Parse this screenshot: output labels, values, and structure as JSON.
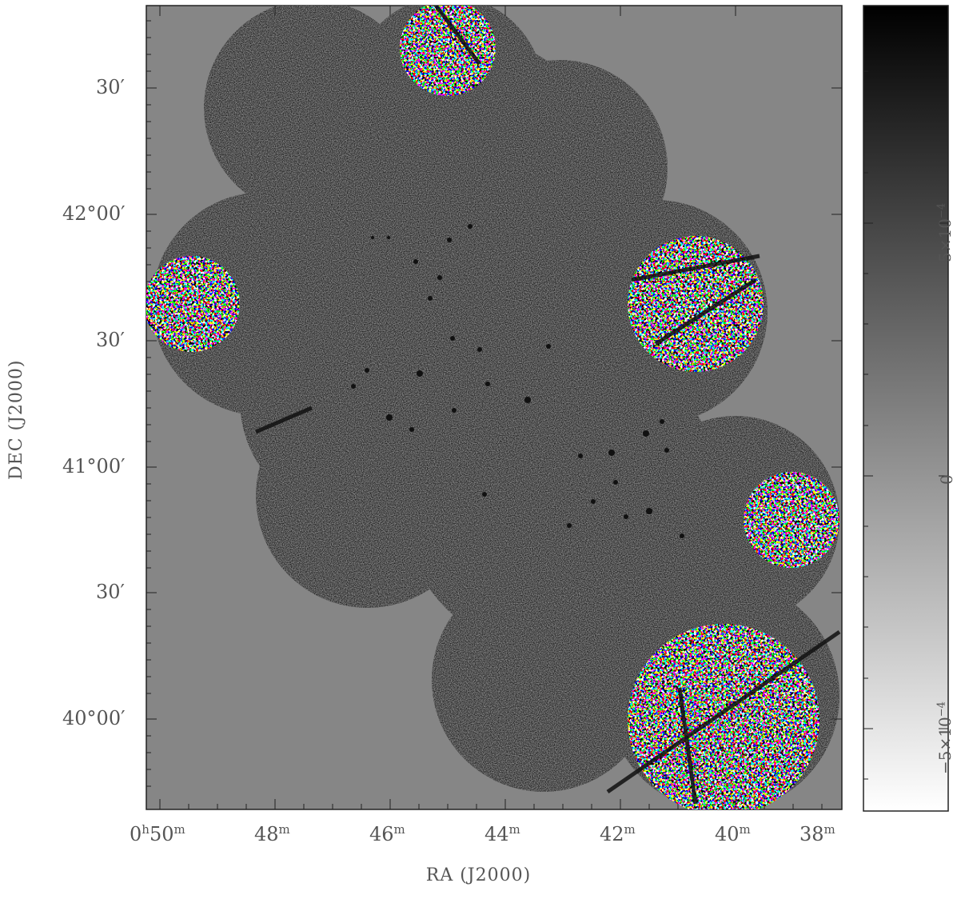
{
  "figure": {
    "xlabel": "RA (J2000)",
    "ylabel": "DEC (J2000)",
    "x_ticks": [
      {
        "h": "0",
        "m": "50"
      },
      {
        "h": "",
        "m": "48"
      },
      {
        "h": "",
        "m": "46"
      },
      {
        "h": "",
        "m": "44"
      },
      {
        "h": "",
        "m": "42"
      },
      {
        "h": "",
        "m": "40"
      },
      {
        "h": "",
        "m": "38"
      }
    ],
    "y_ticks": [
      {
        "deg": "",
        "min": "30"
      },
      {
        "deg": "42",
        "min": "00"
      },
      {
        "deg": "",
        "min": "30"
      },
      {
        "deg": "41",
        "min": "00"
      },
      {
        "deg": "",
        "min": "30"
      },
      {
        "deg": "40",
        "min": "00"
      }
    ],
    "colorbar_ticks": [
      {
        "label": "5×10",
        "exp": "−4"
      },
      {
        "label": "0",
        "exp": ""
      },
      {
        "label": "−5×10",
        "exp": "−4"
      }
    ],
    "colors": {
      "background": "#868686",
      "frame": "#222222"
    }
  }
}
